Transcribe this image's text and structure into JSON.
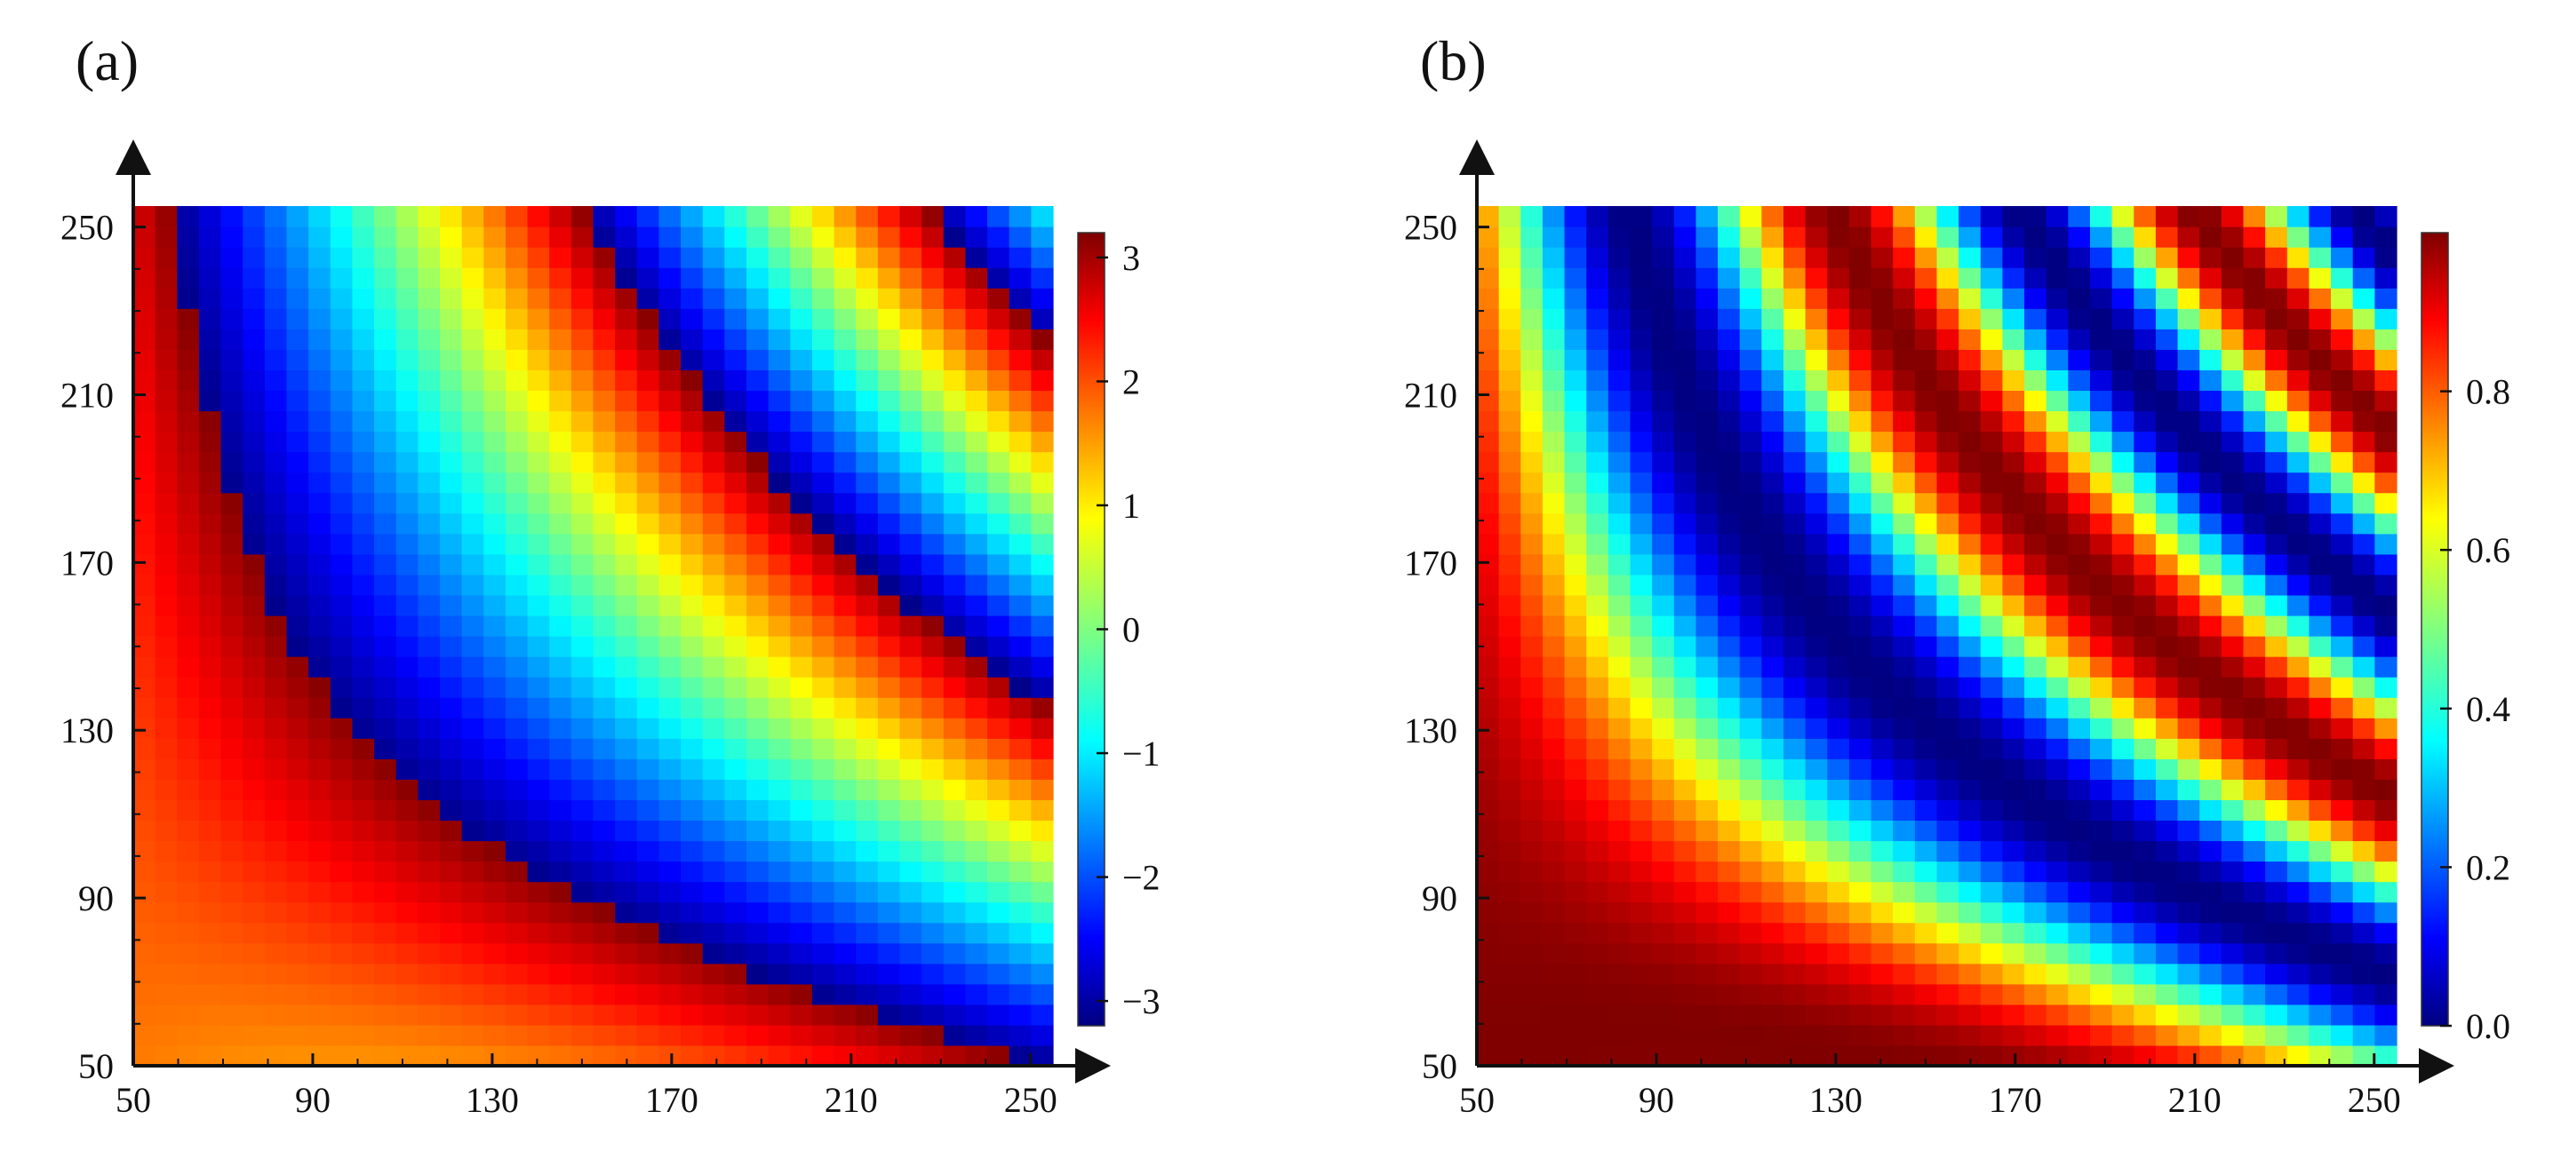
{
  "chart_data": [
    {
      "type": "heatmap",
      "panel_label": "(a)",
      "title": "",
      "xlabel": "",
      "ylabel": "",
      "x_range": [
        50,
        255
      ],
      "y_range": [
        50,
        255
      ],
      "x_ticks": [
        "50",
        "90",
        "130",
        "170",
        "210",
        "250"
      ],
      "y_ticks": [
        "50",
        "90",
        "130",
        "170",
        "210",
        "250"
      ],
      "colorbar": {
        "range": [
          -3.2,
          3.2
        ],
        "ticks": [
          "3",
          "2",
          "1",
          "0",
          "−1",
          "−2",
          "−3"
        ],
        "tick_values": [
          3,
          2,
          1,
          0,
          -1,
          -2,
          -3
        ]
      },
      "grid_cells": "42x42",
      "description_of_values": "phase-like field wrapping between -3.2 and 3.2; orange/red at low x, blue band near x~95-110 curving to low y, yellow/orange central band, red diagonal band and green/yellow region at top-right"
    },
    {
      "type": "heatmap",
      "panel_label": "(b)",
      "title": "",
      "xlabel": "",
      "ylabel": "",
      "x_range": [
        50,
        255
      ],
      "y_range": [
        50,
        255
      ],
      "x_ticks": [
        "50",
        "90",
        "130",
        "170",
        "210",
        "250"
      ],
      "y_ticks": [
        "50",
        "90",
        "130",
        "170",
        "210",
        "250"
      ],
      "colorbar": {
        "range": [
          0.0,
          1.0
        ],
        "ticks": [
          "0.8",
          "0.6",
          "0.4",
          "0.2",
          "0.0"
        ],
        "tick_values": [
          0.8,
          0.6,
          0.4,
          0.2,
          0.0
        ]
      },
      "grid_cells": "42x42",
      "description_of_values": "magnitude field 0-1; dark red at low x, blue curved band from x~95 sweeping to low y, large red interior region, blue region at top-right with secondary cyan/yellow bands"
    }
  ]
}
